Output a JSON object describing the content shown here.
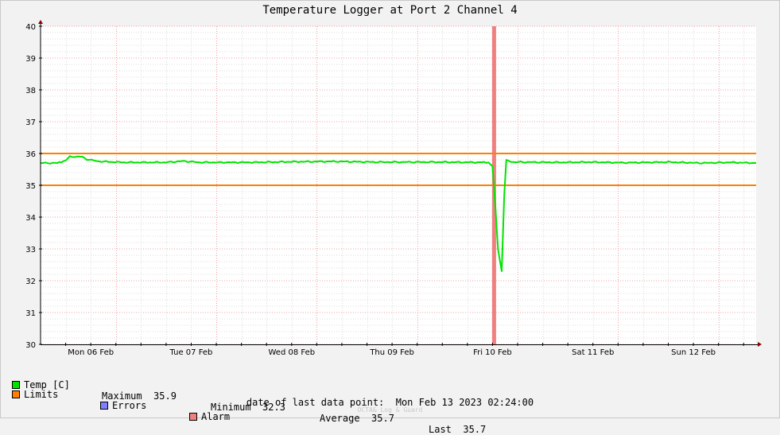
{
  "title": "Temperature Logger at Port 2 Channel 4",
  "chart_data": {
    "type": "line",
    "title": "Temperature Logger at Port 2 Channel 4",
    "ylim": [
      30,
      40
    ],
    "y_ticks": [
      "30",
      "31",
      "32",
      "33",
      "34",
      "35",
      "36",
      "37",
      "38",
      "39",
      "40"
    ],
    "x_range_hours": [
      0,
      171
    ],
    "x_tick_labels": [
      "Mon 06 Feb",
      "Tue 07 Feb",
      "Wed 08 Feb",
      "Thu 09 Feb",
      "Fri 10 Feb",
      "Sat 11 Feb",
      "Sun 12 Feb"
    ],
    "grid": true,
    "series": [
      {
        "name": "Temp [C]",
        "color": "#00e400",
        "points": [
          [
            0,
            35.7
          ],
          [
            4,
            35.7
          ],
          [
            6,
            35.78
          ],
          [
            7,
            35.9
          ],
          [
            10,
            35.9
          ],
          [
            11,
            35.82
          ],
          [
            14,
            35.75
          ],
          [
            20,
            35.72
          ],
          [
            30,
            35.72
          ],
          [
            34,
            35.76
          ],
          [
            38,
            35.72
          ],
          [
            50,
            35.72
          ],
          [
            60,
            35.74
          ],
          [
            70,
            35.75
          ],
          [
            80,
            35.73
          ],
          [
            95,
            35.73
          ],
          [
            105,
            35.72
          ],
          [
            107,
            35.72
          ],
          [
            108,
            35.6
          ],
          [
            108.6,
            34.5
          ],
          [
            109.3,
            33.0
          ],
          [
            110.2,
            32.3
          ],
          [
            110.8,
            34.7
          ],
          [
            111.3,
            35.78
          ],
          [
            113,
            35.73
          ],
          [
            125,
            35.72
          ],
          [
            131,
            35.73
          ],
          [
            140,
            35.71
          ],
          [
            150,
            35.73
          ],
          [
            158,
            35.7
          ],
          [
            165,
            35.72
          ],
          [
            171,
            35.7
          ]
        ]
      }
    ],
    "limits": {
      "name": "Limits",
      "color": "#ff7f00",
      "values": [
        35,
        36
      ]
    },
    "alarm": {
      "name": "Alarm",
      "color": "#f08080",
      "start_hours": 107.9,
      "end_hours": 108.8
    },
    "errors": {
      "name": "Errors",
      "color": "#7f7fff"
    }
  },
  "legend": {
    "temp": {
      "label": "Temp [C]",
      "color": "#00e400"
    },
    "limits": {
      "label": "Limits",
      "color": "#ff7f00"
    },
    "errors": {
      "label": "Errors",
      "color": "#7f7fff"
    },
    "alarm": {
      "label": "Alarm",
      "color": "#f08080"
    }
  },
  "stats": {
    "maximum_label": "Maximum",
    "maximum": "35.9",
    "minimum_label": "Minimum",
    "minimum": "32.3",
    "average_label": "Average",
    "average": "35.7",
    "last_label": "Last",
    "last": "35.7"
  },
  "last_data_point_label": "date of last data point:",
  "last_data_point_value": "Mon Feb 13 2023 02:24:00",
  "watermark": "OCTA& Log & Guard"
}
